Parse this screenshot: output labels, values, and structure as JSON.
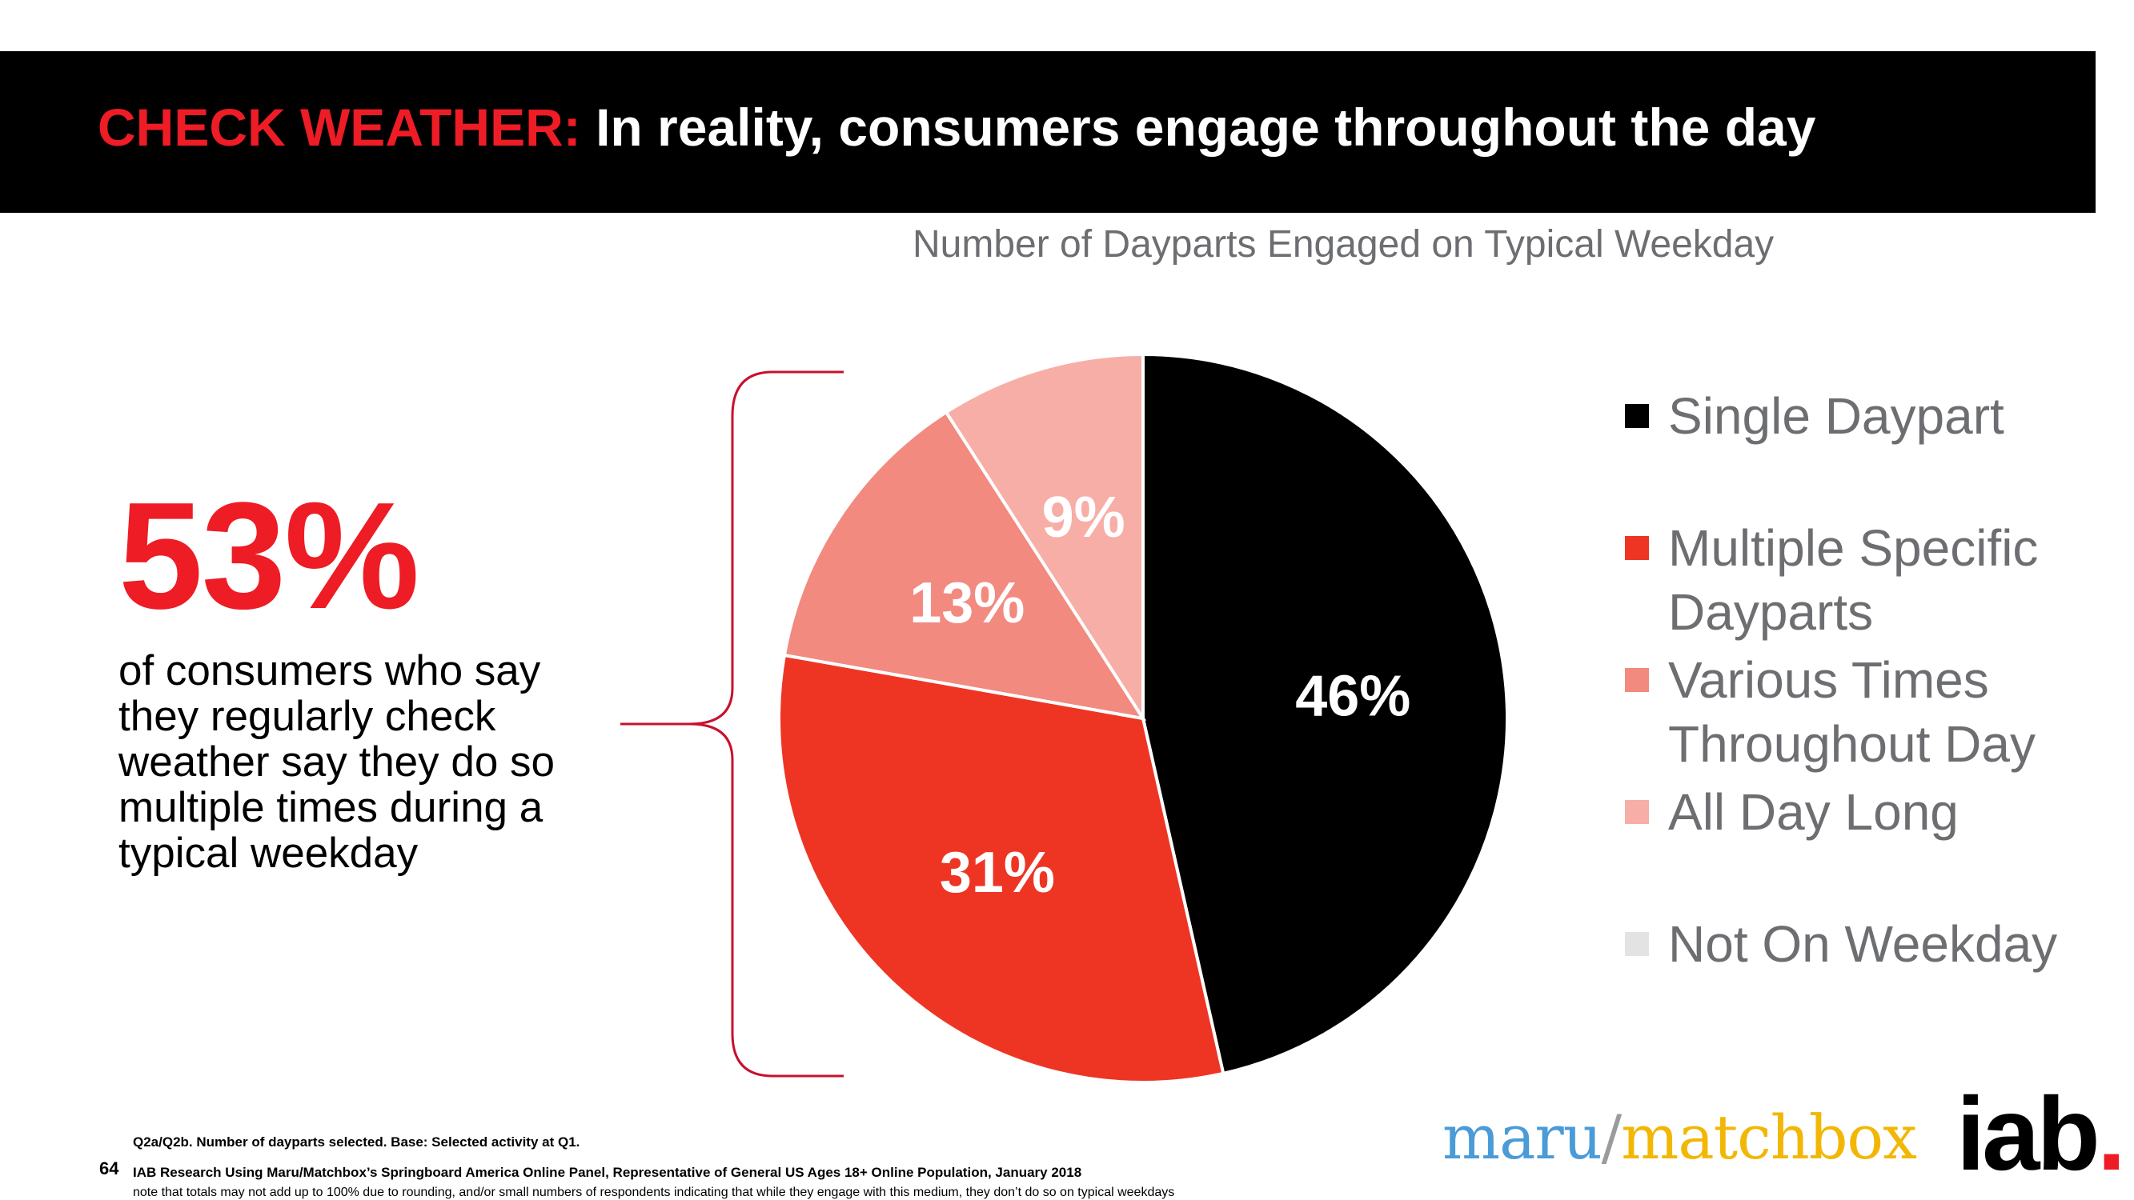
{
  "header": {
    "highlight": "CHECK WEATHER:",
    "title": " In reality, consumers engage throughout the day",
    "highlight_color": "#ee1c25"
  },
  "callout": {
    "big_number": "53%",
    "description": "of consumers who say they regularly check weather say they do so multiple times during a typical weekday"
  },
  "chart_data": {
    "type": "pie",
    "title": "Number of Dayparts Engaged on Typical Weekday",
    "slices": [
      {
        "name": "Single Daypart",
        "value": 46,
        "label": "46%",
        "color": "#000000"
      },
      {
        "name": "Multiple Specific Dayparts",
        "value": 31,
        "label": "31%",
        "color": "#ee3524"
      },
      {
        "name": "Various Times Throughout Day",
        "value": 13,
        "label": "13%",
        "color": "#f28a80"
      },
      {
        "name": "All Day Long",
        "value": 9,
        "label": "9%",
        "color": "#f7aea6"
      },
      {
        "name": "Not On Weekday",
        "value": 0,
        "label": "",
        "color": "#e3e3e3"
      }
    ],
    "legend": [
      {
        "lines": [
          "Single Daypart"
        ],
        "color": "#000000"
      },
      {
        "lines": [
          "Multiple Specific",
          "Dayparts"
        ],
        "color": "#ee3524"
      },
      {
        "lines": [
          "Various Times",
          "Throughout Day"
        ],
        "color": "#f28a80"
      },
      {
        "lines": [
          "All Day Long"
        ],
        "color": "#f7aea6"
      },
      {
        "lines": [
          "Not On Weekday"
        ],
        "color": "#e3e3e3"
      }
    ],
    "legend_position": "right"
  },
  "footer": {
    "page_number": "64",
    "line1": "Q2a/Q2b. Number of dayparts selected. Base: Selected activity at Q1.",
    "line2": "IAB Research Using Maru/Matchbox’s Springboard America Online Panel, Representative of General US Ages 18+ Online Population, January 2018",
    "line3": "note that totals may not add up to 100% due to rounding, and/or small numbers of respondents indicating that while they engage with this medium, they don’t do so on typical weekdays"
  },
  "logos": {
    "maru": "maru",
    "slash": "/",
    "matchbox": "matchbox",
    "iab": "iab",
    "iab_dot": "."
  }
}
